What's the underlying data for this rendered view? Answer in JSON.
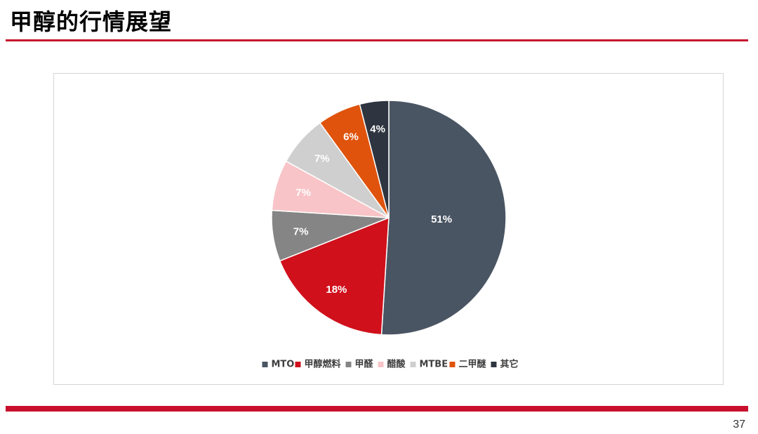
{
  "slide": {
    "title": "甲醇的行情展望",
    "page_number": "37"
  },
  "chart_data": {
    "type": "pie",
    "title": "",
    "legend_position": "bottom",
    "slices": [
      {
        "name": "MTO",
        "value": 51,
        "label": "51%",
        "color": "#4a5563",
        "label_color": "#ffffff"
      },
      {
        "name": "甲醇燃料",
        "value": 18,
        "label": "18%",
        "color": "#d0101b",
        "label_color": "#ffffff"
      },
      {
        "name": "甲醛",
        "value": 7,
        "label": "7%",
        "color": "#858585",
        "label_color": "#ffffff"
      },
      {
        "name": "醋酸",
        "value": 7,
        "label": "7%",
        "color": "#f8c4c7",
        "label_color": "#ffffff"
      },
      {
        "name": "MTBE",
        "value": 7,
        "label": "7%",
        "color": "#cfcfcf",
        "label_color": "#ffffff"
      },
      {
        "name": "二甲醚",
        "value": 6,
        "label": "6%",
        "color": "#e0530c",
        "label_color": "#ffffff"
      },
      {
        "name": "其它",
        "value": 4,
        "label": "4%",
        "color": "#2e3540",
        "label_color": "#ffffff"
      }
    ]
  }
}
